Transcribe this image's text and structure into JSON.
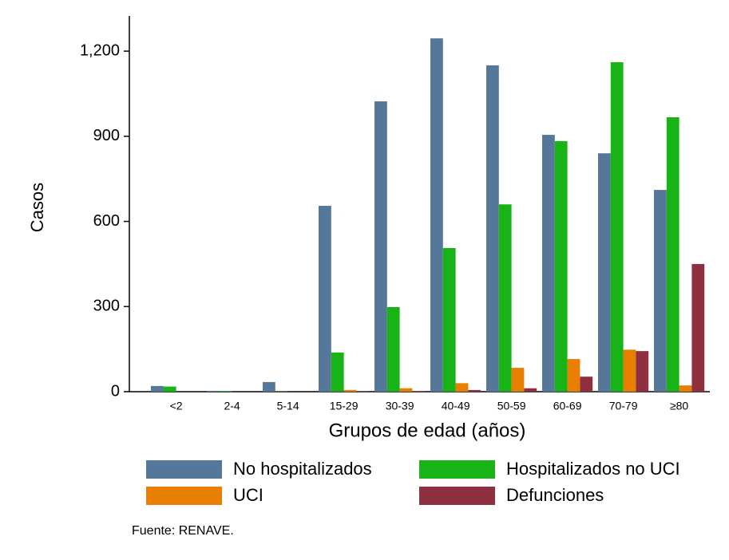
{
  "chart_data": {
    "type": "bar",
    "x_label": "Grupos de edad (años)",
    "y_label": "Casos",
    "source": "Fuente: RENAVE.",
    "categories": [
      "<2",
      "2-4",
      "5-14",
      "15-29",
      "30-39",
      "40-49",
      "50-59",
      "60-69",
      "70-79",
      "≥80"
    ],
    "series": [
      {
        "name": "No hospitalizados",
        "color": "#55779a",
        "values": [
          20,
          3,
          34,
          655,
          1023,
          1245,
          1150,
          905,
          840,
          711
        ]
      },
      {
        "name": "Hospitalizados no UCI",
        "color": "#17b317",
        "values": [
          18,
          2,
          1,
          138,
          298,
          506,
          660,
          883,
          1161,
          967
        ]
      },
      {
        "name": "UCI",
        "color": "#e87f00",
        "values": [
          0,
          0,
          0,
          6,
          12,
          30,
          84,
          115,
          148,
          22
        ]
      },
      {
        "name": "Defunciones",
        "color": "#8f3040",
        "values": [
          0,
          0,
          0,
          1,
          2,
          6,
          12,
          53,
          143,
          450
        ]
      }
    ],
    "ylim": [
      0,
      1324
    ],
    "yticks": [
      0,
      300,
      600,
      900,
      {
        "value": 1200,
        "label": "1,200"
      }
    ]
  }
}
